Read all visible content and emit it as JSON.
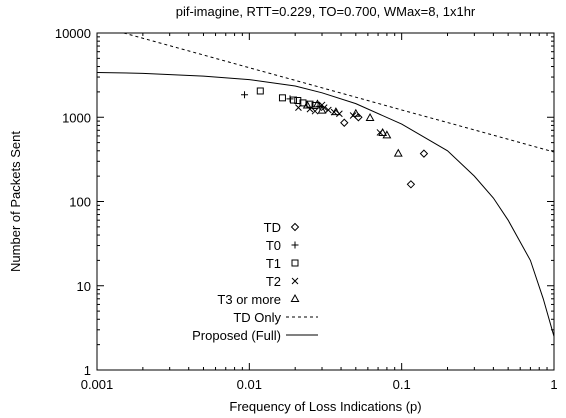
{
  "chart_data": {
    "type": "scatter",
    "title": "pif-imagine, RTT=0.229, TO=0.700, WMax=8, 1x1hr",
    "xlabel": "Frequency of Loss Indications (p)",
    "ylabel": "Number of Packets Sent",
    "xscale": "log",
    "yscale": "log",
    "xlim": [
      0.001,
      1
    ],
    "ylim": [
      1,
      10000
    ],
    "x_ticks": [
      0.001,
      0.01,
      0.1,
      1
    ],
    "x_tick_labels": [
      "0.001",
      "0.01",
      "0.1",
      "1"
    ],
    "y_ticks": [
      1,
      10,
      100,
      1000,
      10000
    ],
    "y_tick_labels": [
      "1",
      "10",
      "100",
      "1000",
      "10000"
    ],
    "grid": false,
    "legend_position": "bottom-left",
    "series": [
      {
        "name": "TD",
        "kind": "points",
        "marker": "diamond",
        "points": [
          [
            0.042,
            860
          ],
          [
            0.052,
            1000
          ],
          [
            0.14,
            370
          ],
          [
            0.115,
            160
          ]
        ]
      },
      {
        "name": "T0",
        "kind": "points",
        "marker": "plus",
        "points": [
          [
            0.0093,
            1850
          ],
          [
            0.0185,
            1650
          ],
          [
            0.029,
            1350
          ]
        ]
      },
      {
        "name": "T1",
        "kind": "points",
        "marker": "square",
        "points": [
          [
            0.0118,
            2050
          ],
          [
            0.0165,
            1700
          ],
          [
            0.0195,
            1600
          ],
          [
            0.0208,
            1580
          ],
          [
            0.0225,
            1480
          ],
          [
            0.025,
            1430
          ],
          [
            0.027,
            1380
          ]
        ]
      },
      {
        "name": "T2",
        "kind": "points",
        "marker": "cross",
        "points": [
          [
            0.021,
            1300
          ],
          [
            0.025,
            1250
          ],
          [
            0.027,
            1180
          ],
          [
            0.03,
            1400
          ],
          [
            0.031,
            1300
          ],
          [
            0.033,
            1220
          ],
          [
            0.036,
            1150
          ],
          [
            0.039,
            1100
          ],
          [
            0.048,
            1050
          ],
          [
            0.072,
            660
          ]
        ]
      },
      {
        "name": "T3 or more",
        "kind": "points",
        "marker": "triangle",
        "points": [
          [
            0.024,
            1380
          ],
          [
            0.028,
            1420
          ],
          [
            0.03,
            1200
          ],
          [
            0.037,
            1150
          ],
          [
            0.05,
            1100
          ],
          [
            0.062,
            980
          ],
          [
            0.075,
            650
          ],
          [
            0.08,
            610
          ],
          [
            0.095,
            370
          ]
        ]
      },
      {
        "name": "TD Only",
        "kind": "line",
        "dash": "dashed",
        "points": [
          [
            0.0015,
            10000
          ],
          [
            0.002,
            8660
          ],
          [
            0.005,
            5480
          ],
          [
            0.01,
            3870
          ],
          [
            0.02,
            2740
          ],
          [
            0.05,
            1730
          ],
          [
            0.1,
            1220
          ],
          [
            0.2,
            866
          ],
          [
            0.5,
            548
          ],
          [
            1,
            387
          ]
        ]
      },
      {
        "name": "Proposed (Full)",
        "kind": "line",
        "dash": "solid",
        "points": [
          [
            0.001,
            3400
          ],
          [
            0.002,
            3320
          ],
          [
            0.005,
            3080
          ],
          [
            0.01,
            2800
          ],
          [
            0.02,
            2350
          ],
          [
            0.03,
            1950
          ],
          [
            0.05,
            1450
          ],
          [
            0.1,
            830
          ],
          [
            0.2,
            400
          ],
          [
            0.3,
            200
          ],
          [
            0.4,
            110
          ],
          [
            0.5,
            60
          ],
          [
            0.7,
            20
          ],
          [
            0.85,
            7
          ],
          [
            1,
            2.5
          ]
        ]
      }
    ]
  }
}
